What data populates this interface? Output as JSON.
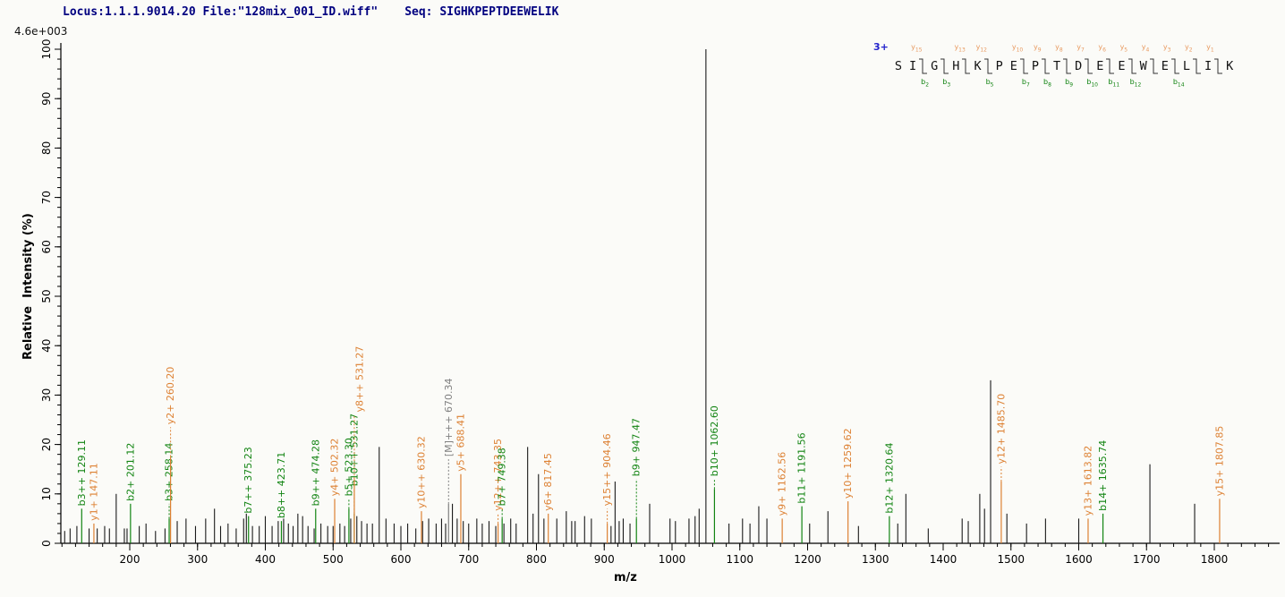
{
  "header": {
    "locus_file": "Locus:1.1.1.9014.20 File:\"128mix_001_ID.wiff\"",
    "seq": "Seq: SIGHKPEPTDEEWELIK"
  },
  "intensity_scale_label": "4.6e+003",
  "sequence_panel": {
    "charge": "3+",
    "residues": [
      "S",
      "I",
      "G",
      "H",
      "K",
      "P",
      "E",
      "P",
      "T",
      "D",
      "E",
      "E",
      "W",
      "E",
      "L",
      "I",
      "K"
    ],
    "gaps": [
      {
        "after": 2,
        "y": "y15",
        "b": "b2"
      },
      {
        "after": 3,
        "b": "b3"
      },
      {
        "after": 4,
        "y": "y13"
      },
      {
        "after": 5,
        "y": "y12",
        "b": "b5"
      },
      {
        "after": 7,
        "y": "y10",
        "b": "b7"
      },
      {
        "after": 8,
        "y": "y9",
        "b": "b8"
      },
      {
        "after": 9,
        "y": "y8",
        "b": "b9"
      },
      {
        "after": 10,
        "y": "y7",
        "b": "b10"
      },
      {
        "after": 11,
        "y": "y6",
        "b": "b11"
      },
      {
        "after": 12,
        "y": "y5",
        "b": "b12"
      },
      {
        "after": 13,
        "y": "y4"
      },
      {
        "after": 14,
        "y": "y3",
        "b": "b14"
      },
      {
        "after": 15,
        "y": "y2"
      },
      {
        "after": 16,
        "y": "y1"
      }
    ]
  },
  "colors": {
    "header": "#000080",
    "b_ion": "#128412",
    "y_ion": "#DD8133",
    "precursor": "#808080",
    "unlabeled_peak": "#1a1a1a",
    "axis": "#000000"
  },
  "chart_data": {
    "type": "bar",
    "subtype": "mass-spectrum-sticks",
    "xlabel": "m/z",
    "ylabel": "Relative  Intensity (%)",
    "xlim": [
      98,
      1900
    ],
    "ylim": [
      0,
      100
    ],
    "x_major_ticks": [
      200,
      300,
      400,
      500,
      600,
      700,
      800,
      900,
      1000,
      1100,
      1200,
      1300,
      1400,
      1500,
      1600,
      1700,
      1800
    ],
    "x_minor_tick_step": 20,
    "y_major_ticks": [
      0,
      10,
      20,
      30,
      40,
      50,
      60,
      70,
      80,
      90,
      100
    ],
    "y_minor_tick_step": 2,
    "grid": false,
    "legend": false,
    "labeled_peaks": [
      {
        "ion": "b3++",
        "mz": 129.11,
        "intensity": 7,
        "series": "b",
        "lift": 0
      },
      {
        "ion": "y1+",
        "mz": 147.11,
        "intensity": 4,
        "series": "y",
        "lift": 0
      },
      {
        "ion": "b2+",
        "mz": 201.12,
        "intensity": 8,
        "series": "b",
        "lift": 0
      },
      {
        "ion": "b3+",
        "mz": 258.14,
        "intensity": 5,
        "series": "b",
        "lift": 3
      },
      {
        "ion": "y2+",
        "mz": 260.2,
        "intensity": 17.5,
        "series": "y",
        "lift": 6
      },
      {
        "ion": "b7++",
        "mz": 375.23,
        "intensity": 5.5,
        "series": "b",
        "lift": 0
      },
      {
        "ion": "b8++",
        "mz": 423.71,
        "intensity": 4.5,
        "series": "b",
        "lift": 0
      },
      {
        "ion": "b9++",
        "mz": 474.28,
        "intensity": 7,
        "series": "b",
        "lift": 0
      },
      {
        "ion": "y4+",
        "mz": 502.32,
        "intensity": 9,
        "series": "y",
        "lift": 0
      },
      {
        "ion": "b5+",
        "mz": 523.3,
        "intensity": 7,
        "series": "b",
        "lift": 2
      },
      {
        "ion": "b10++",
        "mz": 531.27,
        "intensity": 6,
        "series": "b",
        "lift": 5
      },
      {
        "ion": "y8++",
        "mz": 531.27,
        "intensity": 13,
        "series": "y",
        "lift": 13,
        "label_dx": 6
      },
      {
        "ion": "y10++",
        "mz": 630.32,
        "intensity": 6.5,
        "series": "y",
        "lift": 0
      },
      {
        "ion": "[M]+++",
        "mz": 670.34,
        "intensity": 8,
        "series": "M",
        "lift": 9
      },
      {
        "ion": "y5+",
        "mz": 688.41,
        "intensity": 14,
        "series": "y",
        "lift": 0
      },
      {
        "ion": "y12++",
        "mz": 743.35,
        "intensity": 4,
        "series": "y",
        "lift": 2
      },
      {
        "ion": "b7+",
        "mz": 749.38,
        "intensity": 5,
        "series": "b",
        "lift": 2
      },
      {
        "ion": "y6+",
        "mz": 817.45,
        "intensity": 6,
        "series": "y",
        "lift": 0
      },
      {
        "ion": "y15++",
        "mz": 904.46,
        "intensity": 4,
        "series": "y",
        "lift": 3
      },
      {
        "ion": "b9+",
        "mz": 947.47,
        "intensity": 5,
        "series": "b",
        "lift": 8
      },
      {
        "ion": "b10+",
        "mz": 1062.6,
        "intensity": 11,
        "series": "b",
        "lift": 2
      },
      {
        "ion": "y9+",
        "mz": 1162.56,
        "intensity": 5,
        "series": "y",
        "lift": 0
      },
      {
        "ion": "b11+",
        "mz": 1191.56,
        "intensity": 7.5,
        "series": "b",
        "lift": 0
      },
      {
        "ion": "y10+",
        "mz": 1259.62,
        "intensity": 8.5,
        "series": "y",
        "lift": 0
      },
      {
        "ion": "b12+",
        "mz": 1320.64,
        "intensity": 5.5,
        "series": "b",
        "lift": 0
      },
      {
        "ion": "y12+",
        "mz": 1485.7,
        "intensity": 12.5,
        "series": "y",
        "lift": 3
      },
      {
        "ion": "y13+",
        "mz": 1613.82,
        "intensity": 5,
        "series": "y",
        "lift": 0
      },
      {
        "ion": "b14+",
        "mz": 1635.74,
        "intensity": 6,
        "series": "b",
        "lift": 0
      },
      {
        "ion": "y15+",
        "mz": 1807.85,
        "intensity": 9,
        "series": "y",
        "lift": 0
      }
    ],
    "unlabeled_peaks": [
      [
        104,
        2.5
      ],
      [
        112,
        3
      ],
      [
        122,
        3.5
      ],
      [
        140,
        3
      ],
      [
        152,
        3
      ],
      [
        163,
        3.5
      ],
      [
        170,
        3
      ],
      [
        180,
        10
      ],
      [
        192,
        3
      ],
      [
        196,
        3
      ],
      [
        214,
        3.5
      ],
      [
        224,
        4
      ],
      [
        238,
        2.5
      ],
      [
        252,
        3
      ],
      [
        270,
        4.5
      ],
      [
        283,
        5
      ],
      [
        297,
        3.5
      ],
      [
        312,
        5
      ],
      [
        325,
        7
      ],
      [
        334,
        3.5
      ],
      [
        345,
        4
      ],
      [
        357,
        3
      ],
      [
        368,
        5
      ],
      [
        372,
        6
      ],
      [
        381,
        3.5
      ],
      [
        391,
        3.5
      ],
      [
        400,
        5.5
      ],
      [
        410,
        3.5
      ],
      [
        419,
        4.5
      ],
      [
        427,
        5
      ],
      [
        434,
        4
      ],
      [
        441,
        3.5
      ],
      [
        448,
        6
      ],
      [
        455,
        5.5
      ],
      [
        463,
        3.5
      ],
      [
        472,
        3
      ],
      [
        482,
        4
      ],
      [
        492,
        3.5
      ],
      [
        500,
        3.5
      ],
      [
        510,
        4
      ],
      [
        517,
        3.5
      ],
      [
        526,
        5
      ],
      [
        535,
        5.5
      ],
      [
        542,
        4.5
      ],
      [
        550,
        4
      ],
      [
        558,
        4
      ],
      [
        568,
        19.5
      ],
      [
        578,
        5
      ],
      [
        590,
        4
      ],
      [
        600,
        3.5
      ],
      [
        610,
        4
      ],
      [
        622,
        3
      ],
      [
        632,
        4.5
      ],
      [
        641,
        5
      ],
      [
        652,
        4
      ],
      [
        660,
        5
      ],
      [
        666,
        4
      ],
      [
        676,
        8
      ],
      [
        683,
        5
      ],
      [
        692,
        4.5
      ],
      [
        700,
        4
      ],
      [
        712,
        5
      ],
      [
        720,
        4
      ],
      [
        730,
        4.5
      ],
      [
        740,
        3.5
      ],
      [
        752,
        4
      ],
      [
        762,
        5
      ],
      [
        770,
        4
      ],
      [
        787,
        19.5
      ],
      [
        795,
        6
      ],
      [
        803,
        14
      ],
      [
        811,
        5
      ],
      [
        830,
        5
      ],
      [
        844,
        6.5
      ],
      [
        852,
        4.5
      ],
      [
        857,
        4.5
      ],
      [
        871,
        5.5
      ],
      [
        881,
        5
      ],
      [
        910,
        3.5
      ],
      [
        916,
        12.5
      ],
      [
        922,
        4.5
      ],
      [
        928,
        5
      ],
      [
        938,
        4
      ],
      [
        967,
        8
      ],
      [
        997,
        5
      ],
      [
        1005,
        4.5
      ],
      [
        1025,
        5
      ],
      [
        1034,
        5.5
      ],
      [
        1040,
        7
      ],
      [
        1050,
        100
      ],
      [
        1084,
        4
      ],
      [
        1104,
        5
      ],
      [
        1115,
        4
      ],
      [
        1128,
        7.5
      ],
      [
        1140,
        5
      ],
      [
        1203,
        4
      ],
      [
        1230,
        6.5
      ],
      [
        1275,
        3.5
      ],
      [
        1333,
        4
      ],
      [
        1345,
        10
      ],
      [
        1378,
        3
      ],
      [
        1428,
        5
      ],
      [
        1437,
        4.5
      ],
      [
        1454,
        10
      ],
      [
        1461,
        7
      ],
      [
        1470,
        33
      ],
      [
        1494,
        6
      ],
      [
        1523,
        4
      ],
      [
        1551,
        5
      ],
      [
        1600,
        5
      ],
      [
        1705,
        16
      ],
      [
        1771,
        8
      ]
    ]
  }
}
